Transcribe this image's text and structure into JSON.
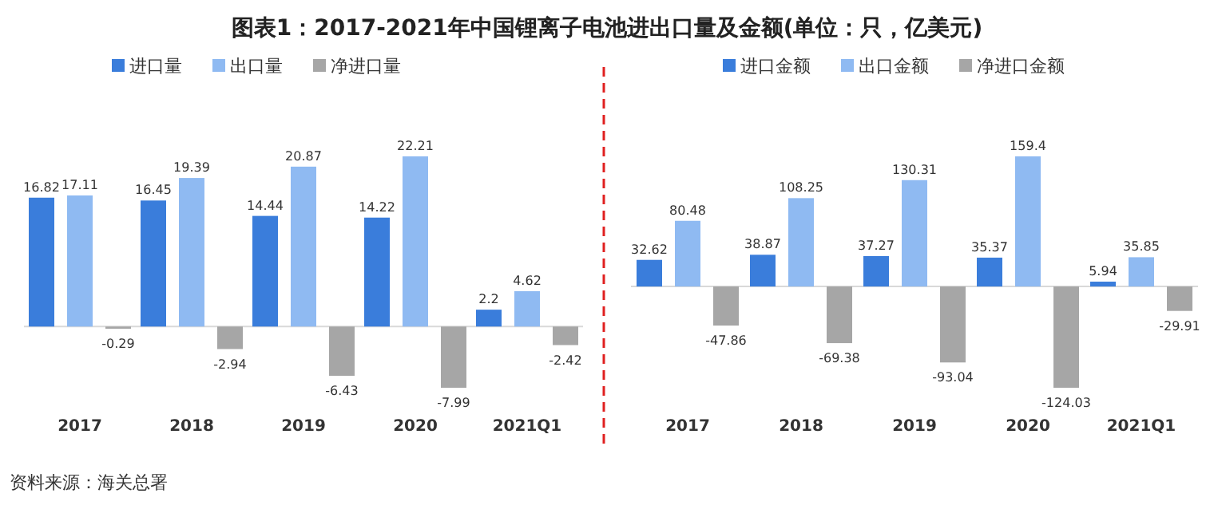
{
  "chart_data": [
    {
      "type": "bar",
      "title": "图表1：2017-2021年中国锂离子电池进出口量及金额(单位：只，亿美元)",
      "categories": [
        "2017",
        "2018",
        "2019",
        "2020",
        "2021Q1"
      ],
      "data_labels": true,
      "legend": "top",
      "annotations": [
        "资料来源：海关总署"
      ],
      "series": [
        {
          "name": "进口量",
          "color": "#3a7ddb",
          "values": [
            16.82,
            16.45,
            14.44,
            14.22,
            2.2
          ]
        },
        {
          "name": "出口量",
          "color": "#8fbaf2",
          "values": [
            17.11,
            19.39,
            20.87,
            22.21,
            4.62
          ]
        },
        {
          "name": "净进口量",
          "color": "#a6a6a6",
          "values": [
            -0.29,
            -2.94,
            -6.43,
            -7.99,
            -2.42
          ]
        }
      ]
    },
    {
      "type": "bar",
      "categories": [
        "2017",
        "2018",
        "2019",
        "2020",
        "2021Q1"
      ],
      "data_labels": true,
      "legend": "top",
      "series": [
        {
          "name": "进口金额",
          "color": "#3a7ddb",
          "values": [
            32.62,
            38.87,
            37.27,
            35.37,
            5.94
          ]
        },
        {
          "name": "出口金额",
          "color": "#8fbaf2",
          "values": [
            80.48,
            108.25,
            130.31,
            159.4,
            35.85
          ]
        },
        {
          "name": "净进口金额",
          "color": "#a6a6a6",
          "values": [
            -47.86,
            -69.38,
            -93.04,
            -124.03,
            -29.91
          ]
        }
      ]
    }
  ]
}
